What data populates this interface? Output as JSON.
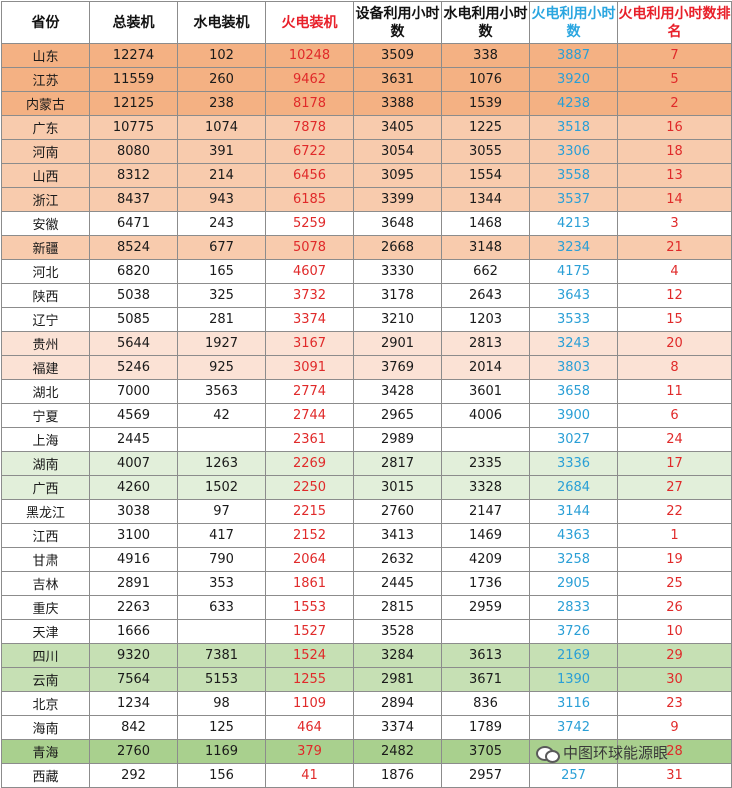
{
  "headers": [
    "省份",
    "总装机",
    "水电装机",
    "火电装机",
    "设备利用小时数",
    "水电利用小时数",
    "火电利用小时数",
    "火电利用小时数排名"
  ],
  "rows": [
    {
      "style": "dark",
      "cells": [
        "山东",
        "12274",
        "102",
        "10248",
        "3509",
        "338",
        "3887",
        "7"
      ]
    },
    {
      "style": "dark",
      "cells": [
        "江苏",
        "11559",
        "260",
        "9462",
        "3631",
        "1076",
        "3920",
        "5"
      ]
    },
    {
      "style": "dark",
      "cells": [
        "内蒙古",
        "12125",
        "238",
        "8178",
        "3388",
        "1539",
        "4238",
        "2"
      ]
    },
    {
      "style": "mid",
      "cells": [
        "广东",
        "10775",
        "1074",
        "7878",
        "3405",
        "1225",
        "3518",
        "16"
      ]
    },
    {
      "style": "mid",
      "cells": [
        "河南",
        "8080",
        "391",
        "6722",
        "3054",
        "3055",
        "3306",
        "18"
      ]
    },
    {
      "style": "mid",
      "cells": [
        "山西",
        "8312",
        "214",
        "6456",
        "3095",
        "1554",
        "3558",
        "13"
      ]
    },
    {
      "style": "mid",
      "cells": [
        "浙江",
        "8437",
        "943",
        "6185",
        "3399",
        "1344",
        "3537",
        "14"
      ]
    },
    {
      "style": "white",
      "cells": [
        "安徽",
        "6471",
        "243",
        "5259",
        "3648",
        "1468",
        "4213",
        "3"
      ]
    },
    {
      "style": "mid",
      "cells": [
        "新疆",
        "8524",
        "677",
        "5078",
        "2668",
        "3148",
        "3234",
        "21"
      ]
    },
    {
      "style": "white",
      "cells": [
        "河北",
        "6820",
        "165",
        "4607",
        "3330",
        "662",
        "4175",
        "4"
      ]
    },
    {
      "style": "white",
      "cells": [
        "陕西",
        "5038",
        "325",
        "3732",
        "3178",
        "2643",
        "3643",
        "12"
      ]
    },
    {
      "style": "white",
      "cells": [
        "辽宁",
        "5085",
        "281",
        "3374",
        "3210",
        "1203",
        "3533",
        "15"
      ]
    },
    {
      "style": "light",
      "cells": [
        "贵州",
        "5644",
        "1927",
        "3167",
        "2901",
        "2813",
        "3243",
        "20"
      ]
    },
    {
      "style": "light",
      "cells": [
        "福建",
        "5246",
        "925",
        "3091",
        "3769",
        "2014",
        "3803",
        "8"
      ]
    },
    {
      "style": "white",
      "cells": [
        "湖北",
        "7000",
        "3563",
        "2774",
        "3428",
        "3601",
        "3658",
        "11"
      ]
    },
    {
      "style": "white",
      "cells": [
        "宁夏",
        "4569",
        "42",
        "2744",
        "2965",
        "4006",
        "3900",
        "6"
      ]
    },
    {
      "style": "white",
      "cells": [
        "上海",
        "2445",
        "",
        "2361",
        "2989",
        "",
        "3027",
        "24"
      ]
    },
    {
      "style": "green",
      "cells": [
        "湖南",
        "4007",
        "1263",
        "2269",
        "2817",
        "2335",
        "3336",
        "17"
      ]
    },
    {
      "style": "green",
      "cells": [
        "广西",
        "4260",
        "1502",
        "2250",
        "3015",
        "3328",
        "2684",
        "27"
      ]
    },
    {
      "style": "white",
      "cells": [
        "黑龙江",
        "3038",
        "97",
        "2215",
        "2760",
        "2147",
        "3144",
        "22"
      ]
    },
    {
      "style": "white",
      "cells": [
        "江西",
        "3100",
        "417",
        "2152",
        "3413",
        "1469",
        "4363",
        "1"
      ]
    },
    {
      "style": "white",
      "cells": [
        "甘肃",
        "4916",
        "790",
        "2064",
        "2632",
        "4209",
        "3258",
        "19"
      ]
    },
    {
      "style": "white",
      "cells": [
        "吉林",
        "2891",
        "353",
        "1861",
        "2445",
        "1736",
        "2905",
        "25"
      ]
    },
    {
      "style": "white",
      "cells": [
        "重庆",
        "2263",
        "633",
        "1553",
        "2815",
        "2959",
        "2833",
        "26"
      ]
    },
    {
      "style": "white",
      "cells": [
        "天津",
        "1666",
        "",
        "1527",
        "3528",
        "",
        "3726",
        "10"
      ]
    },
    {
      "style": "green2",
      "cells": [
        "四川",
        "9320",
        "7381",
        "1524",
        "3284",
        "3613",
        "2169",
        "29"
      ]
    },
    {
      "style": "green2",
      "cells": [
        "云南",
        "7564",
        "5153",
        "1255",
        "2981",
        "3671",
        "1390",
        "30"
      ]
    },
    {
      "style": "white",
      "cells": [
        "北京",
        "1234",
        "98",
        "1109",
        "2894",
        "836",
        "3116",
        "23"
      ]
    },
    {
      "style": "white",
      "cells": [
        "海南",
        "842",
        "125",
        "464",
        "3374",
        "1789",
        "3742",
        "9"
      ]
    },
    {
      "style": "green3",
      "cells": [
        "青海",
        "2760",
        "1169",
        "379",
        "2482",
        "3705",
        "",
        "28"
      ]
    },
    {
      "style": "white",
      "cells": [
        "西藏",
        "292",
        "156",
        "41",
        "1876",
        "2957",
        "257",
        "31"
      ]
    }
  ],
  "watermark": "中图环球能源眼",
  "colors": {
    "header_red": "#e8202a",
    "header_blue": "#2aa6e0",
    "value_red": "#e02a2a",
    "value_blue": "#2a9fd6",
    "row_dark": "#f4b183",
    "row_mid": "#f8cbad",
    "row_light": "#fbe2d5",
    "row_green": "#e2efda",
    "row_green2": "#c6e0b4",
    "row_green3": "#a9d08e"
  }
}
